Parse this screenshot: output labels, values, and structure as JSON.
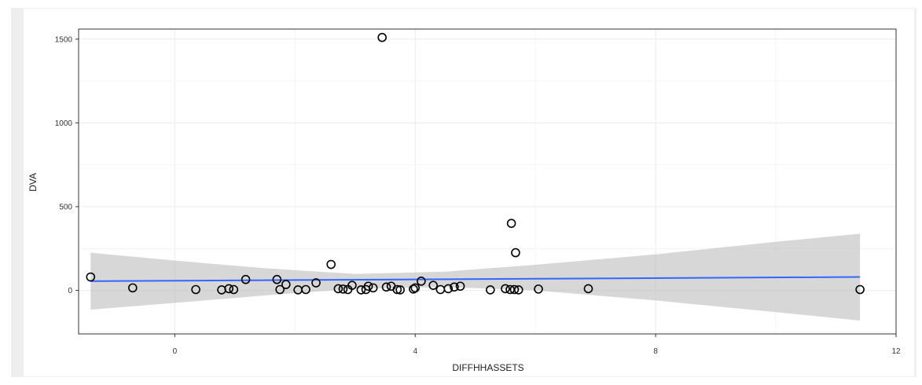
{
  "chart_data": {
    "type": "scatter",
    "xlabel": "DIFFHHASSETS",
    "ylabel": "DVA",
    "xlim": [
      -1.6,
      12.0
    ],
    "ylim": [
      -260,
      1560
    ],
    "xticks": [
      0,
      4,
      8,
      12
    ],
    "xtick_labels": [
      "0",
      "4",
      "8",
      "12"
    ],
    "yticks": [
      0,
      500,
      1000,
      1500
    ],
    "ytick_labels": [
      "0",
      "500",
      "1000",
      "1500"
    ],
    "grid": true,
    "legend": "none",
    "colors": {
      "point_stroke": "#000000",
      "fit_line": "#3366ff",
      "confidence_band": "#bdbdbd",
      "grid": "#ebebeb",
      "axis": "#333333"
    },
    "points": [
      {
        "x": -1.4,
        "y": 80
      },
      {
        "x": -0.7,
        "y": 15
      },
      {
        "x": 0.35,
        "y": 5
      },
      {
        "x": 0.78,
        "y": 3
      },
      {
        "x": 0.9,
        "y": 10
      },
      {
        "x": 0.98,
        "y": 5
      },
      {
        "x": 1.18,
        "y": 65
      },
      {
        "x": 1.7,
        "y": 65
      },
      {
        "x": 1.75,
        "y": 5
      },
      {
        "x": 1.85,
        "y": 35
      },
      {
        "x": 2.05,
        "y": 3
      },
      {
        "x": 2.18,
        "y": 5
      },
      {
        "x": 2.35,
        "y": 45
      },
      {
        "x": 2.6,
        "y": 155
      },
      {
        "x": 2.72,
        "y": 10
      },
      {
        "x": 2.8,
        "y": 8
      },
      {
        "x": 2.88,
        "y": 5
      },
      {
        "x": 2.95,
        "y": 30
      },
      {
        "x": 3.1,
        "y": 3
      },
      {
        "x": 3.18,
        "y": 5
      },
      {
        "x": 3.22,
        "y": 25
      },
      {
        "x": 3.3,
        "y": 15
      },
      {
        "x": 3.45,
        "y": 1510
      },
      {
        "x": 3.52,
        "y": 20
      },
      {
        "x": 3.6,
        "y": 25
      },
      {
        "x": 3.7,
        "y": 5
      },
      {
        "x": 3.75,
        "y": 3
      },
      {
        "x": 3.97,
        "y": 8
      },
      {
        "x": 4.0,
        "y": 15
      },
      {
        "x": 4.1,
        "y": 55
      },
      {
        "x": 4.3,
        "y": 30
      },
      {
        "x": 4.42,
        "y": 5
      },
      {
        "x": 4.55,
        "y": 10
      },
      {
        "x": 4.65,
        "y": 20
      },
      {
        "x": 4.75,
        "y": 25
      },
      {
        "x": 5.25,
        "y": 3
      },
      {
        "x": 5.5,
        "y": 10
      },
      {
        "x": 5.58,
        "y": 5
      },
      {
        "x": 5.6,
        "y": 400
      },
      {
        "x": 5.65,
        "y": 5
      },
      {
        "x": 5.67,
        "y": 225
      },
      {
        "x": 5.72,
        "y": 3
      },
      {
        "x": 6.05,
        "y": 8
      },
      {
        "x": 6.88,
        "y": 10
      },
      {
        "x": 11.4,
        "y": 5
      }
    ],
    "fit_line": {
      "x": [
        -1.4,
        11.4
      ],
      "y": [
        55,
        80
      ]
    },
    "confidence_band": {
      "x": [
        -1.4,
        0.0,
        1.5,
        3.0,
        4.5,
        6.0,
        8.0,
        10.0,
        11.4
      ],
      "upper": [
        225,
        178,
        132,
        98,
        112,
        153,
        215,
        290,
        338
      ],
      "lower": [
        -115,
        -75,
        -30,
        10,
        20,
        0,
        -60,
        -130,
        -180
      ]
    }
  }
}
